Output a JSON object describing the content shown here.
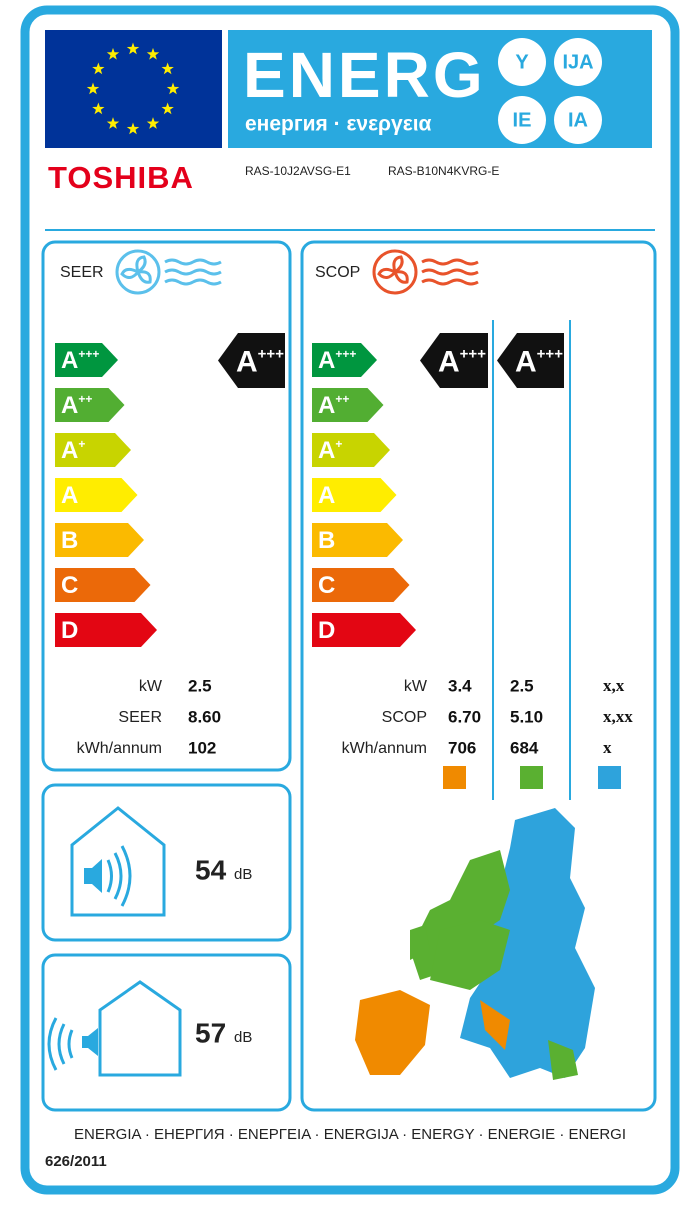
{
  "header": {
    "title": "ENERG",
    "subtitle": "енергия · ενεργεια",
    "badges": [
      "Y",
      "IJA",
      "IE",
      "IA"
    ]
  },
  "brand": "TOSHIBA",
  "models": [
    "RAS-10J2AVSG-E1",
    "RAS-B10N4KVRG-E"
  ],
  "scale": [
    {
      "letter": "A",
      "sup": "+++",
      "color": "#00963f"
    },
    {
      "letter": "A",
      "sup": "++",
      "color": "#52ae32"
    },
    {
      "letter": "A",
      "sup": "+",
      "color": "#c8d400"
    },
    {
      "letter": "A",
      "color": "#ffed00"
    },
    {
      "letter": "B",
      "color": "#fbba00"
    },
    {
      "letter": "C",
      "color": "#eb6909"
    },
    {
      "letter": "D",
      "color": "#e30613"
    }
  ],
  "seer": {
    "title": "SEER",
    "rating": {
      "letter": "A",
      "sup": "+++"
    },
    "rows": [
      {
        "label": "kW",
        "values": [
          "2.5"
        ]
      },
      {
        "label": "SEER",
        "values": [
          "8.60"
        ]
      },
      {
        "label": "kWh/annum",
        "values": [
          "102"
        ]
      }
    ]
  },
  "scop": {
    "title": "SCOP",
    "ratings": [
      {
        "letter": "A",
        "sup": "+++"
      },
      {
        "letter": "A",
        "sup": "+++"
      }
    ],
    "rows": [
      {
        "label": "kW",
        "values": [
          "3.4",
          "2.5",
          "x,x"
        ]
      },
      {
        "label": "SCOP",
        "values": [
          "6.70",
          "5.10",
          "x,xx"
        ]
      },
      {
        "label": "kWh/annum",
        "values": [
          "706",
          "684",
          "x"
        ]
      }
    ],
    "zone_colors": [
      "#f08a00",
      "#5ab031",
      "#2ea3dc"
    ]
  },
  "noise": {
    "indoor": {
      "value": "54",
      "unit": "dB"
    },
    "outdoor": {
      "value": "57",
      "unit": "dB"
    }
  },
  "footer": {
    "languages": "ENERGIA · ЕНЕРГИЯ · ΕΝΕΡΓΕΙΑ · ENERGIJA · ENERGY · ENERGIE · ENERGI",
    "regulation": "626/2011"
  }
}
